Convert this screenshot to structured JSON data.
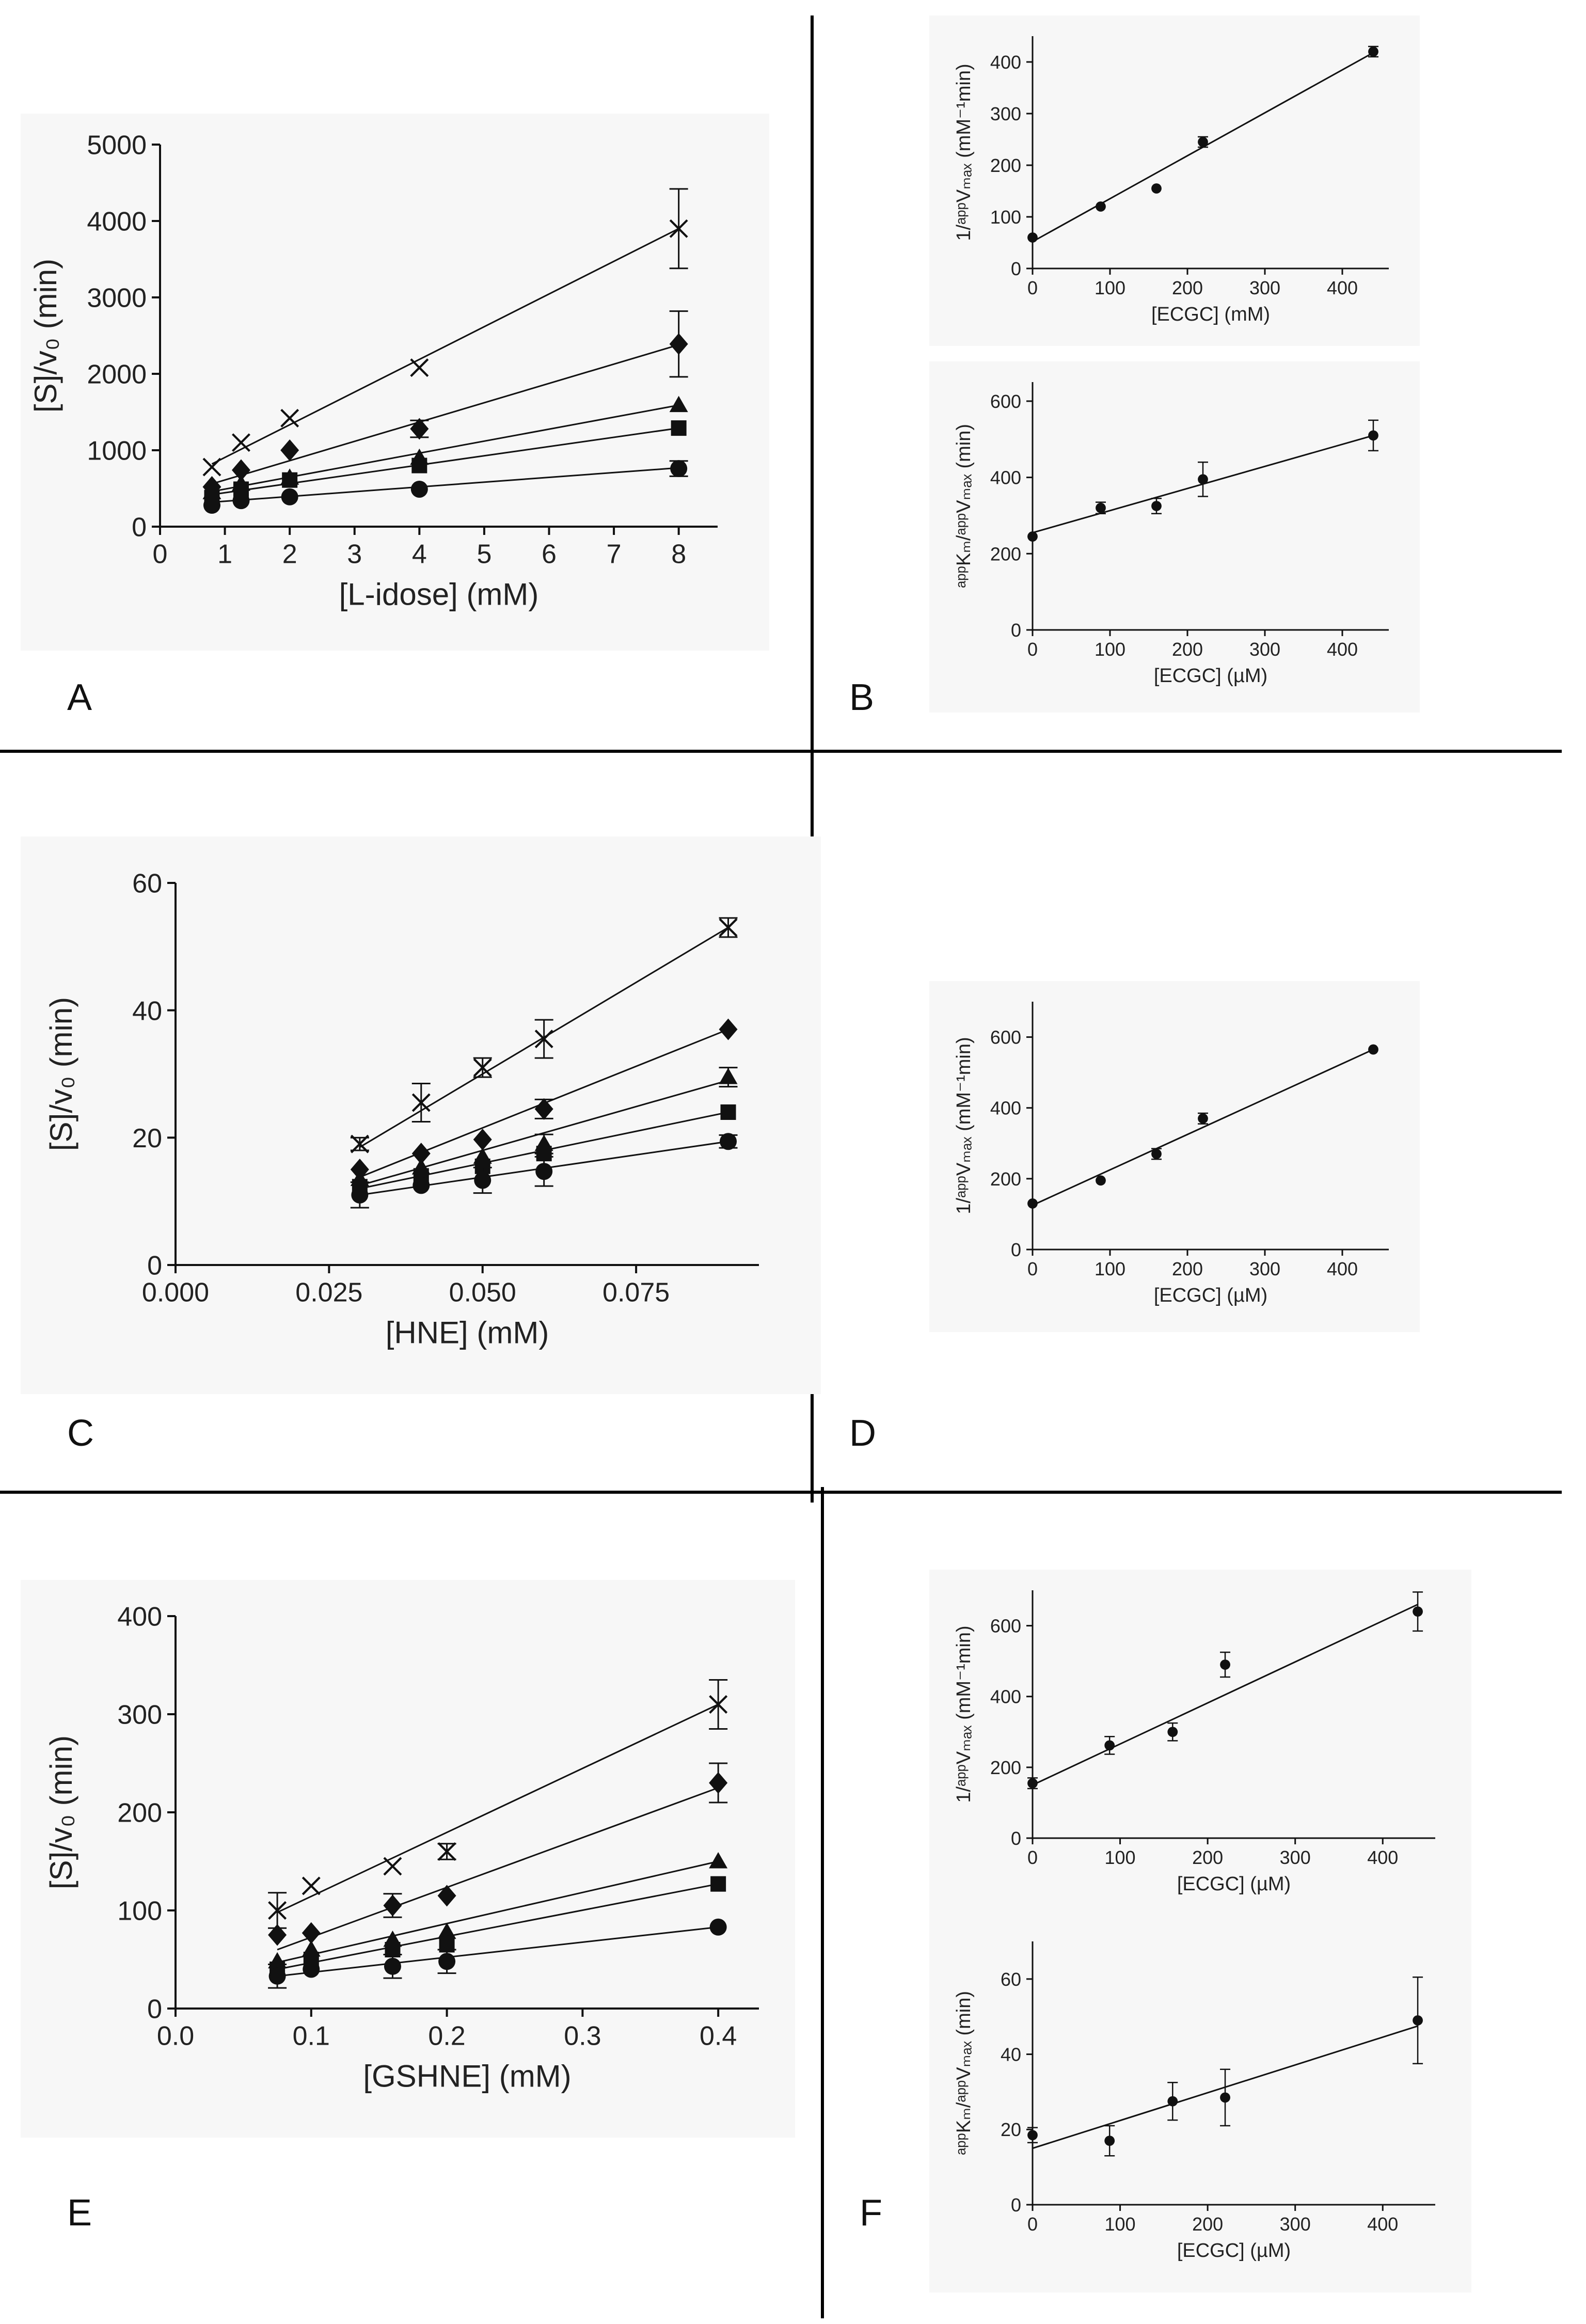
{
  "figure": {
    "panel_letters": [
      "A",
      "B",
      "C",
      "D",
      "E",
      "F"
    ]
  },
  "chart_data": [
    {
      "id": "A",
      "type": "scatter",
      "title": "",
      "xlabel": "[L-idose] (mM)",
      "ylabel": "[S]/v₀ (min)",
      "xlim": [
        0,
        8.6
      ],
      "ylim": [
        0,
        5000
      ],
      "xticks": [
        0,
        1,
        2,
        3,
        4,
        5,
        6,
        7,
        8
      ],
      "xtick_labels": [
        "0",
        "1",
        "2",
        "3",
        "4",
        "5",
        "6",
        "7",
        "8"
      ],
      "yticks": [
        0,
        1000,
        2000,
        3000,
        4000,
        5000
      ],
      "ytick_labels": [
        "0",
        "1000",
        "2000",
        "3000",
        "4000",
        "5000"
      ],
      "series": [
        {
          "marker": "cross",
          "x": [
            0.8,
            1.25,
            2,
            4,
            8
          ],
          "y": [
            780,
            1100,
            1420,
            2080,
            3900
          ],
          "err": [
            0,
            0,
            0,
            0,
            520
          ],
          "fit": [
            [
              0.8,
              820
            ],
            [
              8,
              3900
            ]
          ]
        },
        {
          "marker": "diamond",
          "x": [
            0.8,
            1.25,
            2,
            4,
            8
          ],
          "y": [
            520,
            740,
            1000,
            1280,
            2390
          ],
          "err": [
            0,
            0,
            0,
            110,
            430
          ],
          "fit": [
            [
              0.8,
              560
            ],
            [
              8,
              2380
            ]
          ]
        },
        {
          "marker": "triangle",
          "x": [
            0.8,
            1.25,
            2,
            4,
            8
          ],
          "y": [
            450,
            560,
            640,
            900,
            1590
          ],
          "err": [
            0,
            0,
            0,
            0,
            0
          ],
          "fit": [
            [
              0.8,
              460
            ],
            [
              8,
              1590
            ]
          ]
        },
        {
          "marker": "square",
          "x": [
            0.8,
            1.25,
            2,
            4,
            8
          ],
          "y": [
            380,
            490,
            610,
            800,
            1290
          ],
          "err": [
            0,
            0,
            0,
            0,
            0
          ],
          "fit": [
            [
              0.8,
              420
            ],
            [
              8,
              1290
            ]
          ]
        },
        {
          "marker": "circle",
          "x": [
            0.8,
            1.25,
            2,
            4,
            8
          ],
          "y": [
            280,
            340,
            390,
            490,
            760
          ],
          "err": [
            0,
            0,
            0,
            0,
            100
          ],
          "fit": [
            [
              0.8,
              320
            ],
            [
              8,
              770
            ]
          ]
        }
      ]
    },
    {
      "id": "B1",
      "type": "scatter",
      "xlabel": "[ECGC] (mM)",
      "ylabel": "1/ᵃᵖᵖVₘₐₓ (mM⁻¹min)",
      "xlim": [
        0,
        460
      ],
      "ylim": [
        0,
        450
      ],
      "xticks": [
        0,
        100,
        200,
        300,
        400
      ],
      "xtick_labels": [
        "0",
        "100",
        "200",
        "300",
        "400"
      ],
      "yticks": [
        0,
        100,
        200,
        300,
        400
      ],
      "ytick_labels": [
        "0",
        "100",
        "200",
        "300",
        "400"
      ],
      "series": [
        {
          "marker": "circle",
          "x": [
            0,
            88,
            160,
            220,
            440
          ],
          "y": [
            60,
            120,
            155,
            245,
            420
          ],
          "err": [
            0,
            0,
            0,
            10,
            10
          ],
          "fit": [
            [
              0,
              52
            ],
            [
              440,
              418
            ]
          ]
        }
      ]
    },
    {
      "id": "B2",
      "type": "scatter",
      "xlabel": "[ECGC] (µM)",
      "ylabel": "ᵃᵖᵖKₘ/ᵃᵖᵖVₘₐₓ (min)",
      "xlim": [
        0,
        460
      ],
      "ylim": [
        0,
        650
      ],
      "xticks": [
        0,
        100,
        200,
        300,
        400
      ],
      "xtick_labels": [
        "0",
        "100",
        "200",
        "300",
        "400"
      ],
      "yticks": [
        0,
        200,
        400,
        600
      ],
      "ytick_labels": [
        "0",
        "200",
        "400",
        "600"
      ],
      "series": [
        {
          "marker": "circle",
          "x": [
            0,
            88,
            160,
            220,
            440
          ],
          "y": [
            245,
            320,
            325,
            395,
            510
          ],
          "err": [
            0,
            15,
            20,
            45,
            40
          ],
          "fit": [
            [
              0,
              255
            ],
            [
              440,
              510
            ]
          ]
        }
      ]
    },
    {
      "id": "C",
      "type": "scatter",
      "xlabel": "[HNE] (mM)",
      "ylabel": "[S]/v₀ (min)",
      "xlim": [
        0,
        0.095
      ],
      "ylim": [
        0,
        60
      ],
      "xticks": [
        0,
        0.025,
        0.05,
        0.075
      ],
      "xtick_labels": [
        "0.000",
        "0.025",
        "0.050",
        "0.075"
      ],
      "yticks": [
        0,
        20,
        40,
        60
      ],
      "ytick_labels": [
        "0",
        "20",
        "40",
        "60"
      ],
      "series": [
        {
          "marker": "cross",
          "x": [
            0.03,
            0.04,
            0.05,
            0.06,
            0.09
          ],
          "y": [
            19,
            25.5,
            31,
            35.5,
            53
          ],
          "err": [
            1,
            3,
            1.5,
            3,
            1.5
          ],
          "fit": [
            [
              0.03,
              18.5
            ],
            [
              0.09,
              53
            ]
          ]
        },
        {
          "marker": "diamond",
          "x": [
            0.03,
            0.04,
            0.05,
            0.06,
            0.09
          ],
          "y": [
            15,
            17.5,
            19.7,
            24.5,
            37
          ],
          "err": [
            0,
            0,
            0,
            1.5,
            0
          ],
          "fit": [
            [
              0.03,
              13.8
            ],
            [
              0.09,
              37
            ]
          ]
        },
        {
          "marker": "triangle",
          "x": [
            0.03,
            0.04,
            0.05,
            0.06,
            0.09
          ],
          "y": [
            13.5,
            15.3,
            17,
            19,
            29.5
          ],
          "err": [
            0,
            0,
            0,
            1.5,
            1.5
          ],
          "fit": [
            [
              0.03,
              12.5
            ],
            [
              0.09,
              29
            ]
          ]
        },
        {
          "marker": "square",
          "x": [
            0.03,
            0.04,
            0.05,
            0.06,
            0.09
          ],
          "y": [
            12.3,
            14,
            15.5,
            17.5,
            24
          ],
          "err": [
            0,
            0,
            0,
            0,
            0
          ],
          "fit": [
            [
              0.03,
              12
            ],
            [
              0.09,
              24
            ]
          ]
        },
        {
          "marker": "circle",
          "x": [
            0.03,
            0.04,
            0.05,
            0.06,
            0.09
          ],
          "y": [
            11,
            12.5,
            13.3,
            14.7,
            19.4
          ],
          "err": [
            2,
            0,
            2,
            2.3,
            1
          ],
          "fit": [
            [
              0.03,
              11
            ],
            [
              0.09,
              19.4
            ]
          ]
        }
      ]
    },
    {
      "id": "D",
      "type": "scatter",
      "xlabel": "[ECGC] (µM)",
      "ylabel": "1/ᵃᵖᵖVₘₐₓ (mM⁻¹min)",
      "xlim": [
        0,
        460
      ],
      "ylim": [
        0,
        700
      ],
      "xticks": [
        0,
        100,
        200,
        300,
        400
      ],
      "xtick_labels": [
        "0",
        "100",
        "200",
        "300",
        "400"
      ],
      "yticks": [
        0,
        200,
        400,
        600
      ],
      "ytick_labels": [
        "0",
        "200",
        "400",
        "600"
      ],
      "series": [
        {
          "marker": "circle",
          "x": [
            0,
            88,
            160,
            220,
            440
          ],
          "y": [
            130,
            195,
            270,
            370,
            565
          ],
          "err": [
            0,
            0,
            15,
            15,
            0
          ],
          "fit": [
            [
              0,
              125
            ],
            [
              440,
              565
            ]
          ]
        }
      ]
    },
    {
      "id": "E",
      "type": "scatter",
      "xlabel": "[GSHNE] (mM)",
      "ylabel": "[S]/v₀ (min)",
      "xlim": [
        0,
        0.43
      ],
      "ylim": [
        0,
        400
      ],
      "xticks": [
        0,
        0.1,
        0.2,
        0.3,
        0.4
      ],
      "xtick_labels": [
        "0.0",
        "0.1",
        "0.2",
        "0.3",
        "0.4"
      ],
      "yticks": [
        0,
        100,
        200,
        300,
        400
      ],
      "ytick_labels": [
        "0",
        "100",
        "200",
        "300",
        "400"
      ],
      "series": [
        {
          "marker": "cross",
          "x": [
            0.075,
            0.1,
            0.16,
            0.2,
            0.4
          ],
          "y": [
            100,
            125,
            145,
            160,
            310
          ],
          "err": [
            18,
            0,
            0,
            8,
            25
          ],
          "fit": [
            [
              0.075,
              98
            ],
            [
              0.4,
              310
            ]
          ]
        },
        {
          "marker": "diamond",
          "x": [
            0.075,
            0.1,
            0.16,
            0.2,
            0.4
          ],
          "y": [
            75,
            77,
            105,
            115,
            230
          ],
          "err": [
            0,
            0,
            12,
            0,
            20
          ],
          "fit": [
            [
              0.075,
              60
            ],
            [
              0.4,
              225
            ]
          ]
        },
        {
          "marker": "triangle",
          "x": [
            0.075,
            0.1,
            0.16,
            0.2,
            0.4
          ],
          "y": [
            48,
            60,
            70,
            78,
            150
          ],
          "err": [
            0,
            0,
            0,
            0,
            0
          ],
          "fit": [
            [
              0.075,
              47
            ],
            [
              0.4,
              150
            ]
          ]
        },
        {
          "marker": "square",
          "x": [
            0.075,
            0.1,
            0.16,
            0.2,
            0.4
          ],
          "y": [
            40,
            50,
            60,
            65,
            127
          ],
          "err": [
            0,
            0,
            0,
            0,
            0
          ],
          "fit": [
            [
              0.075,
              40
            ],
            [
              0.4,
              127
            ]
          ]
        },
        {
          "marker": "circle",
          "x": [
            0.075,
            0.1,
            0.16,
            0.2,
            0.4
          ],
          "y": [
            33,
            40,
            43,
            48,
            83
          ],
          "err": [
            12,
            0,
            12,
            12,
            0
          ],
          "fit": [
            [
              0.075,
              33
            ],
            [
              0.4,
              83
            ]
          ]
        }
      ]
    },
    {
      "id": "F1",
      "type": "scatter",
      "xlabel": "[ECGC] (µM)",
      "ylabel": "1/ᵃᵖᵖVₘₐₓ (mM⁻¹min)",
      "xlim": [
        0,
        460
      ],
      "ylim": [
        0,
        700
      ],
      "xticks": [
        0,
        100,
        200,
        300,
        400
      ],
      "xtick_labels": [
        "0",
        "100",
        "200",
        "300",
        "400"
      ],
      "yticks": [
        0,
        200,
        400,
        600
      ],
      "ytick_labels": [
        "0",
        "200",
        "400",
        "600"
      ],
      "series": [
        {
          "marker": "circle",
          "x": [
            0,
            88,
            160,
            220,
            440
          ],
          "y": [
            155,
            262,
            300,
            490,
            640
          ],
          "err": [
            15,
            25,
            25,
            35,
            55
          ],
          "fit": [
            [
              0,
              150
            ],
            [
              440,
              660
            ]
          ]
        }
      ]
    },
    {
      "id": "F2",
      "type": "scatter",
      "xlabel": "[ECGC] (µM)",
      "ylabel": "ᵃᵖᵖKₘ/ᵃᵖᵖVₘₐₓ (min)",
      "xlim": [
        0,
        460
      ],
      "ylim": [
        0,
        70
      ],
      "xticks": [
        0,
        100,
        200,
        300,
        400
      ],
      "xtick_labels": [
        "0",
        "100",
        "200",
        "300",
        "400"
      ],
      "yticks": [
        0,
        20,
        40,
        60
      ],
      "ytick_labels": [
        "0",
        "20",
        "40",
        "60"
      ],
      "series": [
        {
          "marker": "circle",
          "x": [
            0,
            88,
            160,
            220,
            440
          ],
          "y": [
            18.5,
            17,
            27.5,
            28.5,
            49
          ],
          "err": [
            2,
            4,
            5,
            7.5,
            11.5
          ],
          "fit": [
            [
              0,
              15
            ],
            [
              440,
              47.5
            ]
          ]
        }
      ]
    }
  ]
}
